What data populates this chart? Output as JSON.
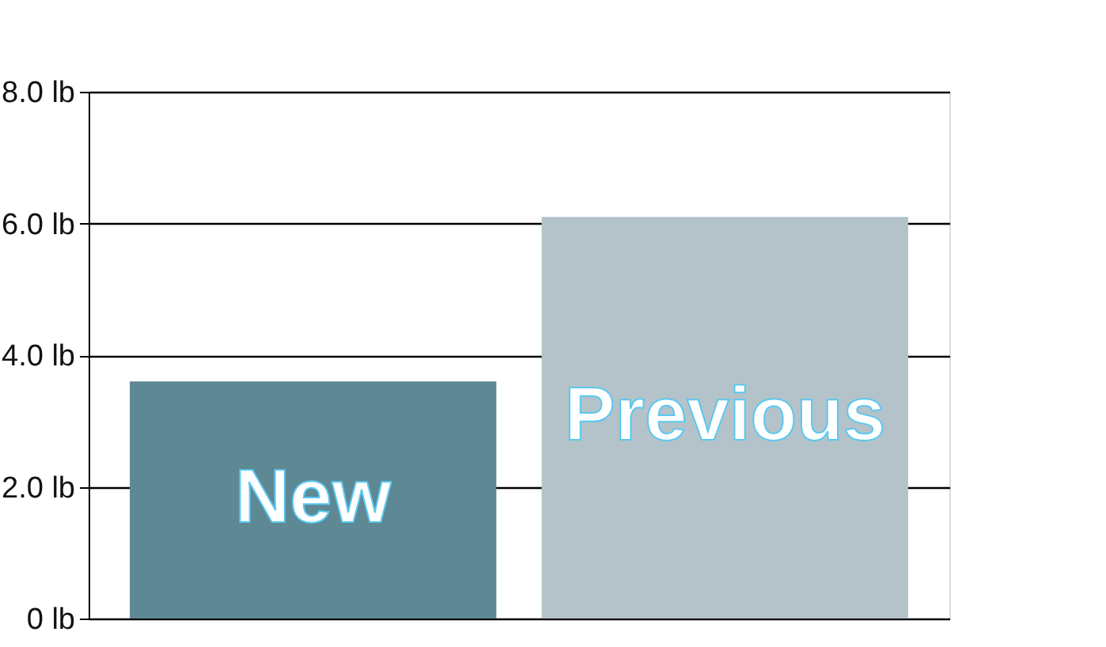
{
  "chart_data": {
    "type": "bar",
    "categories": [
      "New",
      "Previous"
    ],
    "values": [
      3.6,
      6.1
    ],
    "colors": [
      "#5e8894",
      "#b4c3c9"
    ],
    "ylim": [
      0,
      8
    ],
    "yticks": [
      {
        "value": 0,
        "label": "0 lb"
      },
      {
        "value": 2,
        "label": "2.0 lb"
      },
      {
        "value": 4,
        "label": "4.0 lb"
      },
      {
        "value": 6,
        "label": "6.0 lb"
      },
      {
        "value": 8,
        "label": "8.0 lb"
      }
    ],
    "grid": "y",
    "tick_labels": "y"
  }
}
